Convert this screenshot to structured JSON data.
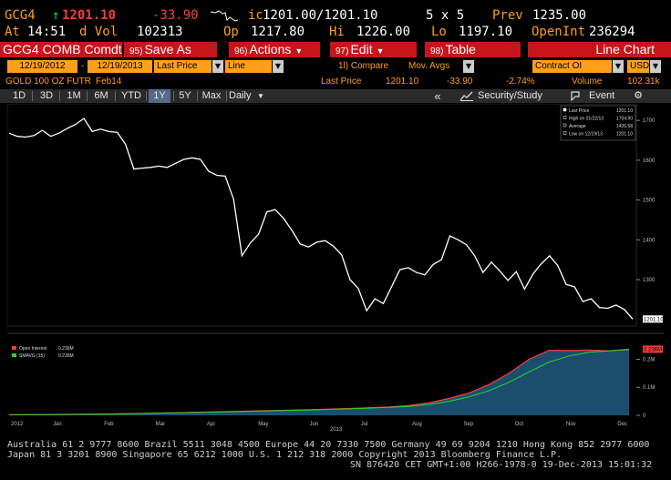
{
  "quote": {
    "ticker": "GCG4",
    "arrow": "↑",
    "last": "1201.10",
    "change": "-33.90",
    "bid_label": "ic",
    "bid_ask": "1201.00/1201.10",
    "size": "5 x 5",
    "prev_label": "Prev",
    "prev": "1235.00",
    "time_label": "At",
    "time": "14:51",
    "volume_label": "d Vol",
    "volume": "102313",
    "open_label": "Op",
    "open": "1217.80",
    "high_label": "Hi",
    "high": "1226.00",
    "low_label": "Lo",
    "low": "1197.10",
    "oi_label": "OpenInt",
    "open_interest": "236294"
  },
  "menubar": {
    "security": "GCG4 COMB Comdt",
    "save": {
      "num": "95)",
      "label": "Save As"
    },
    "actions": {
      "num": "96)",
      "label": "Actions"
    },
    "edit": {
      "num": "97)",
      "label": "Edit"
    },
    "table": {
      "num": "98)",
      "label": "Table"
    },
    "view": "Line Chart"
  },
  "controls": {
    "start_date": "12/19/2012",
    "dash": "-",
    "end_date": "12/19/2013",
    "price_field": "Last Price",
    "chart_style": "Line",
    "compare": "1l) Compare",
    "mov_avgs": "Mov. Avgs",
    "lower_study": "Contract OI",
    "currency": "USD"
  },
  "info": {
    "name": "GOLD 100 OZ FUTR",
    "month": "Feb14",
    "last_label": "Last Price",
    "last": "1201.10",
    "change": "-33.90",
    "pct": "-2.74%",
    "vol_label": "Volume",
    "vol": "102.31k"
  },
  "periods": [
    "1D",
    "3D",
    "1M",
    "6M",
    "YTD",
    "1Y",
    "5Y",
    "Max"
  ],
  "active_period": "1Y",
  "toolbar": {
    "frequency": "Daily",
    "collapse": "«",
    "security_study": "Security/Study",
    "event": "Event",
    "settings_glyph": "⚙"
  },
  "legend_top": [
    {
      "label": "Last Price",
      "value": "1201.10"
    },
    {
      "label": "High on 01/22/13",
      "value": "1704.90"
    },
    {
      "label": "Average",
      "value": "1426.58"
    },
    {
      "label": "Low on 12/19/13",
      "value": "1201.10"
    }
  ],
  "legend_bottom": [
    {
      "label": "Open Interest",
      "value": "0.236M",
      "color": "#ff3b3b"
    },
    {
      "label": "SMAVG (15)",
      "value": "0.235M",
      "color": "#23d923"
    }
  ],
  "chart_data": [
    {
      "type": "line",
      "series": [
        {
          "name": "Last Price",
          "color": "#ffffff"
        }
      ],
      "x": [
        "12/19/12",
        "12/21/12",
        "12/24/12",
        "12/27/12",
        "12/31/12",
        "01/04/13",
        "01/09/13",
        "01/14/13",
        "01/18/13",
        "01/22/13",
        "01/25/13",
        "01/30/13",
        "02/04/13",
        "02/08/13",
        "02/13/13",
        "02/19/13",
        "02/22/13",
        "02/27/13",
        "03/04/13",
        "03/08/13",
        "03/13/13",
        "03/18/13",
        "03/22/13",
        "03/27/13",
        "04/02/13",
        "04/08/13",
        "04/11/13",
        "04/12/13",
        "04/15/13",
        "04/18/13",
        "04/23/13",
        "04/29/13",
        "05/03/13",
        "05/08/13",
        "05/14/13",
        "05/17/13",
        "05/22/13",
        "05/28/13",
        "06/03/13",
        "06/10/13",
        "06/17/13",
        "06/20/13",
        "06/26/13",
        "06/28/13",
        "07/03/13",
        "07/09/13",
        "07/15/13",
        "07/22/13",
        "07/29/13",
        "08/02/13",
        "08/08/13",
        "08/14/13",
        "08/20/13",
        "08/27/13",
        "08/30/13",
        "09/05/13",
        "09/11/13",
        "09/16/13",
        "09/19/13",
        "09/25/13",
        "10/01/13",
        "10/07/13",
        "10/14/13",
        "10/18/13",
        "10/24/13",
        "10/29/13",
        "11/04/13",
        "11/08/13",
        "11/14/13",
        "11/20/13",
        "11/26/13",
        "12/03/13",
        "12/09/13",
        "12/13/13",
        "12/17/13",
        "12/19/13"
      ],
      "values": [
        1668,
        1660,
        1658,
        1662,
        1675,
        1660,
        1668,
        1680,
        1690,
        1704.9,
        1672,
        1678,
        1672,
        1670,
        1640,
        1578,
        1580,
        1582,
        1585,
        1582,
        1592,
        1602,
        1606,
        1602,
        1572,
        1562,
        1560,
        1502,
        1360,
        1392,
        1414,
        1470,
        1476,
        1454,
        1424,
        1390,
        1382,
        1394,
        1398,
        1384,
        1362,
        1300,
        1278,
        1222,
        1252,
        1240,
        1282,
        1325,
        1330,
        1318,
        1312,
        1338,
        1350,
        1410,
        1400,
        1388,
        1360,
        1318,
        1344,
        1322,
        1298,
        1320,
        1276,
        1314,
        1340,
        1360,
        1335,
        1288,
        1282,
        1245,
        1252,
        1230,
        1228,
        1236,
        1225,
        1201.1
      ],
      "ylabel": "",
      "ylim": [
        1188,
        1737
      ],
      "y_ticks": [
        "1700",
        "1600",
        "1500",
        "1400",
        "1300"
      ],
      "last_value_label": "1201.10",
      "grid": false,
      "legend": "top-right"
    },
    {
      "type": "area",
      "series": [
        {
          "name": "Open Interest",
          "color": "#ff3b3b",
          "fill": "#1b4e6e"
        },
        {
          "name": "SMAVG (15)",
          "color": "#23d923"
        }
      ],
      "x_months": [
        "2012",
        "Jan",
        "Feb",
        "Mar",
        "Apr",
        "May",
        "Jun",
        "Jul",
        "Aug",
        "Sep",
        "Oct",
        "Nov",
        "Dec"
      ],
      "x_year_label": "2013",
      "oi_values": [
        2000,
        2500,
        3000,
        3500,
        4200,
        5000,
        6200,
        7500,
        9000,
        10500,
        12000,
        13500,
        15000,
        16800,
        18500,
        20000,
        22000,
        24500,
        27000,
        30000,
        35000,
        45000,
        60000,
        80000,
        110000,
        150000,
        200000,
        232000,
        231000,
        233000,
        230000,
        236000
      ],
      "smavg_values": [
        1800,
        2200,
        2700,
        3200,
        3800,
        4600,
        5700,
        6900,
        8300,
        9800,
        11300,
        12800,
        14300,
        15900,
        17500,
        19200,
        21000,
        23200,
        25600,
        28400,
        32000,
        39000,
        50000,
        66000,
        88000,
        118000,
        155000,
        190000,
        212000,
        225000,
        230000,
        235000
      ],
      "ylim": [
        0,
        260000
      ],
      "y_ticks": [
        "0.2M",
        "0.1M",
        "0"
      ],
      "last_value_label": "0.236M",
      "legend": "top-left"
    }
  ],
  "footer": {
    "line1": "Australia 61 2 9777 8600 Brazil 5511 3048 4500 Europe 44 20 7330 7500 Germany 49 69 9204 1210 Hong Kong 852 2977 6000",
    "line2": "Japan 81 3 3201 8900       Singapore 65 6212 1000       U.S. 1 212 318 2000        Copyright 2013 Bloomberg Finance L.P.",
    "line3": "SN 876420 CET  GMT+1:00 H266-1978-0 19-Dec-2013 15:01:32"
  }
}
